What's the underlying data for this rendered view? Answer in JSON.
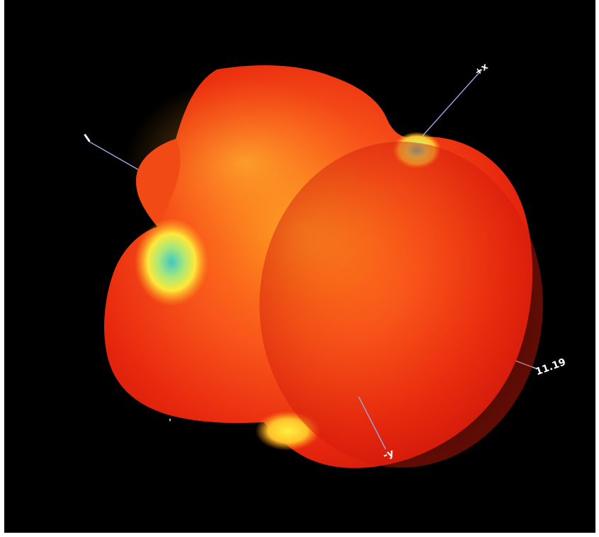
{
  "viewport": {
    "background": "#000000"
  },
  "surface": {
    "palette": {
      "red": "#e8210c",
      "orange": "#ff7a10",
      "yellow": "#ffe43a",
      "cyan": "#4fd6c4",
      "axis": "#9aa6e6"
    }
  },
  "axes": {
    "x_label": "+x",
    "y_label": "-y",
    "z_label": "11.19",
    "neg_label": "l",
    "tick_label": "'"
  }
}
